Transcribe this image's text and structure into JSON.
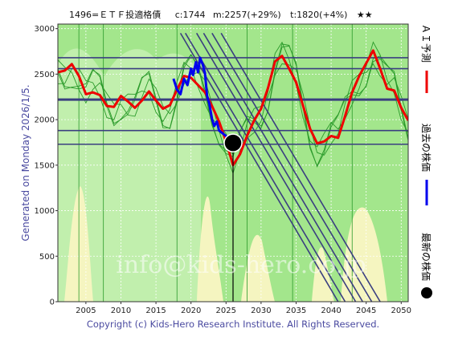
{
  "header": {
    "code_name": "1496=ＥＴＦ投適格債",
    "current": "c:1744",
    "mean": "m:2257(+29%)",
    "target": "t:1820(+4%)",
    "stars": "★★"
  },
  "side_label": "Generated on Monday 2026/1/5.",
  "watermark": "info@kids-hero.co.jp",
  "footer": "Copyright (c) Kids-Hero Research Institute. All Rights Reserved.",
  "legend": [
    {
      "label": "ＡＩ予測",
      "color": "#ee0000",
      "marker": "line"
    },
    {
      "label": "過去の株価",
      "color": "#0000ee",
      "marker": "line"
    },
    {
      "label": "最新の株価",
      "color": "#000000",
      "marker": "dot"
    }
  ],
  "chart_data": {
    "type": "line",
    "xlim": [
      2001,
      2051
    ],
    "ylim": [
      0,
      3050
    ],
    "x_ticks": [
      2005,
      2010,
      2015,
      2020,
      2025,
      2030,
      2035,
      2040,
      2045,
      2050
    ],
    "y_ticks": [
      0,
      500,
      1000,
      1500,
      2000,
      2500,
      3000
    ],
    "horizontal_levels": [
      2680,
      2560,
      2220,
      1880,
      1730
    ],
    "trend_channel_lines": [
      {
        "from": [
          2018.5,
          2950
        ],
        "to": [
          2041.0,
          0
        ]
      },
      {
        "from": [
          2019.2,
          2950
        ],
        "to": [
          2042.0,
          0
        ]
      },
      {
        "from": [
          2020.8,
          2950
        ],
        "to": [
          2043.5,
          0
        ]
      },
      {
        "from": [
          2021.8,
          2950
        ],
        "to": [
          2044.5,
          0
        ]
      },
      {
        "from": [
          2023.0,
          2950
        ],
        "to": [
          2045.8,
          0
        ]
      },
      {
        "from": [
          2024.3,
          2950
        ],
        "to": [
          2047.0,
          0
        ]
      }
    ],
    "series": [
      {
        "key": "ai_forecast",
        "color": "#ee0000",
        "x": [
          2001,
          2002,
          2003,
          2004,
          2005,
          2006,
          2007,
          2008,
          2009,
          2010,
          2011,
          2012,
          2013,
          2014,
          2015,
          2016,
          2017,
          2018,
          2019,
          2020,
          2021,
          2022,
          2023,
          2024,
          2025,
          2026,
          2027,
          2028,
          2029,
          2030,
          2031,
          2032,
          2033,
          2034,
          2035,
          2036,
          2037,
          2038,
          2039,
          2040,
          2041,
          2042,
          2043,
          2044,
          2045,
          2046,
          2047,
          2048,
          2049,
          2050,
          2051
        ],
        "y": [
          2520,
          2540,
          2610,
          2480,
          2280,
          2300,
          2270,
          2150,
          2140,
          2260,
          2200,
          2130,
          2210,
          2310,
          2210,
          2120,
          2160,
          2330,
          2480,
          2460,
          2380,
          2300,
          2150,
          1980,
          1760,
          1500,
          1620,
          1820,
          1990,
          2120,
          2350,
          2640,
          2700,
          2560,
          2410,
          2150,
          1900,
          1740,
          1760,
          1820,
          1800,
          2040,
          2300,
          2480,
          2620,
          2760,
          2560,
          2340,
          2320,
          2130,
          1990
        ]
      },
      {
        "key": "past_price",
        "color": "#0000ee",
        "x": [
          2017.5,
          2018,
          2018.5,
          2019,
          2019.5,
          2020,
          2020.3,
          2020.7,
          2021,
          2021.3,
          2021.7,
          2022,
          2022.3,
          2022.6,
          2023,
          2023.3,
          2023.7,
          2024,
          2024.5,
          2025,
          2025.6,
          2026
        ],
        "y": [
          2450,
          2330,
          2280,
          2450,
          2380,
          2560,
          2490,
          2630,
          2520,
          2680,
          2600,
          2510,
          2260,
          2180,
          2010,
          1930,
          1980,
          1880,
          1850,
          1820,
          1790,
          1744
        ]
      }
    ],
    "latest_point": {
      "x": 2026,
      "y": 1744
    }
  }
}
